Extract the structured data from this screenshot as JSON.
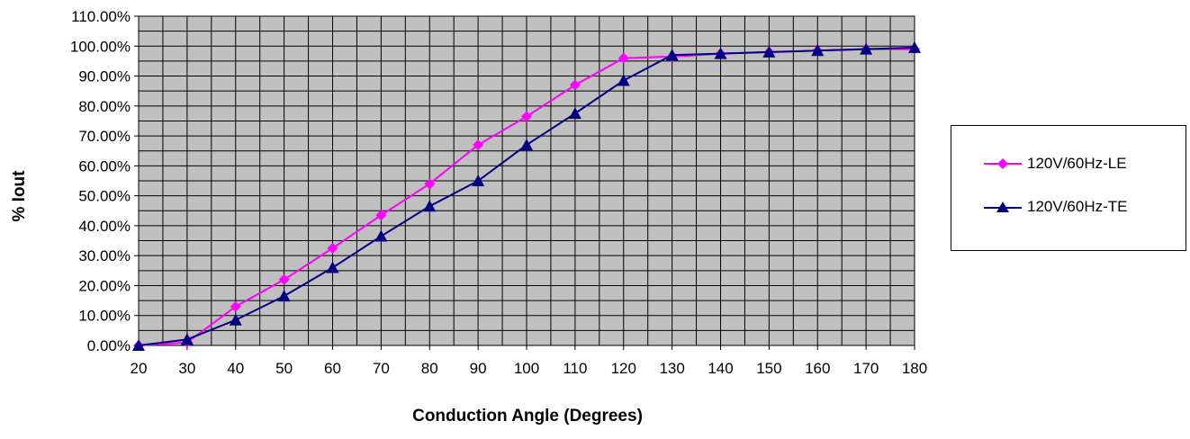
{
  "chart_data": {
    "type": "line",
    "title": "",
    "xlabel": "Conduction Angle (Degrees)",
    "ylabel": "% Iout",
    "x": [
      20,
      30,
      40,
      50,
      60,
      70,
      80,
      90,
      100,
      110,
      120,
      130,
      140,
      150,
      160,
      170,
      180
    ],
    "xlim": [
      20,
      180
    ],
    "ylim": [
      0,
      1.1
    ],
    "xticks": [
      "20",
      "30",
      "40",
      "50",
      "60",
      "70",
      "80",
      "90",
      "100",
      "110",
      "120",
      "130",
      "140",
      "150",
      "160",
      "170",
      "180"
    ],
    "yticks": [
      "0.00%",
      "10.00%",
      "20.00%",
      "30.00%",
      "40.00%",
      "50.00%",
      "60.00%",
      "70.00%",
      "80.00%",
      "90.00%",
      "100.00%",
      "110.00%"
    ],
    "grid": true,
    "plot_background": "#c0c0c0",
    "legend_position": "right",
    "series": [
      {
        "name": "120V/60Hz-LE",
        "color": "#ff00ff",
        "marker": "diamond",
        "values": [
          0.0,
          0.01,
          0.13,
          0.22,
          0.325,
          0.435,
          0.54,
          0.67,
          0.765,
          0.87,
          0.96,
          0.965,
          0.975,
          0.98,
          0.985,
          0.99,
          0.99
        ]
      },
      {
        "name": "120V/60Hz-TE",
        "color": "#000080",
        "marker": "triangle",
        "values": [
          0.0,
          0.02,
          0.085,
          0.165,
          0.26,
          0.365,
          0.465,
          0.55,
          0.67,
          0.775,
          0.885,
          0.97,
          0.975,
          0.98,
          0.985,
          0.99,
          0.995
        ]
      }
    ]
  }
}
